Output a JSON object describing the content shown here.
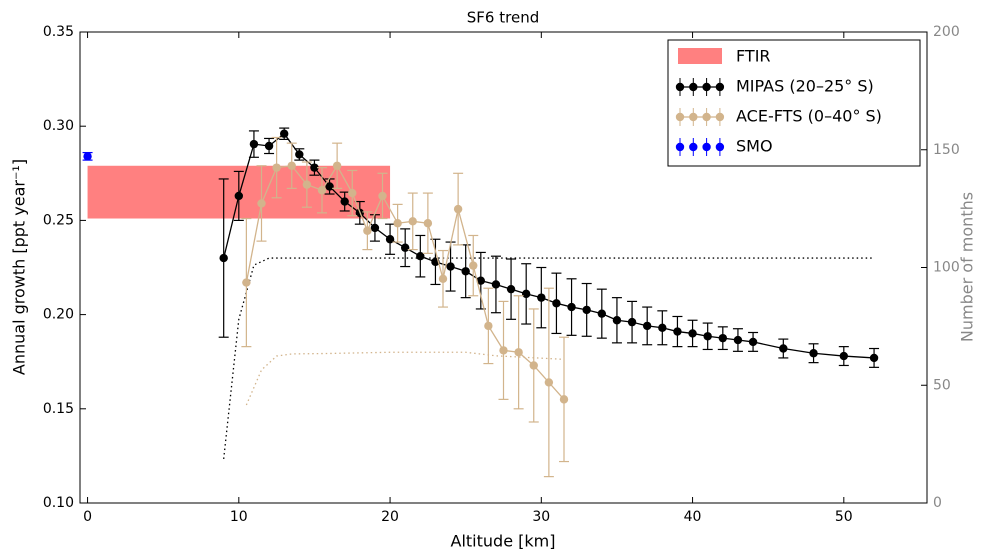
{
  "chart_data": {
    "type": "errorbar",
    "title": "SF6 trend",
    "xlabel": "Altitude [km]",
    "ylabel": "Annual growth [ppt year⁻¹]",
    "y2label": "Number of months",
    "xlim": [
      -0.5,
      55.5
    ],
    "xticks": [
      0,
      10,
      20,
      30,
      40,
      50
    ],
    "ylim": [
      0.1,
      0.35
    ],
    "yticks": [
      {
        "value": 0.1,
        "label": "0.10"
      },
      0.15,
      {
        "value": 0.2,
        "label": "0.20"
      },
      0.25,
      {
        "value": 0.3,
        "label": "0.30"
      },
      0.35
    ],
    "y2lim": [
      0,
      200
    ],
    "y2ticks": [
      0,
      50,
      100,
      150,
      200
    ],
    "legend": "upper right",
    "band": {
      "name": "FTIR",
      "color": "#ff8080",
      "x": [
        0,
        20
      ],
      "values": [
        0.251,
        0.279
      ]
    },
    "series": [
      {
        "name": "MIPAS (20–25° S)",
        "color": "#000000",
        "x": [
          9,
          10,
          11,
          12,
          13,
          14,
          15,
          16,
          17,
          18,
          19,
          20,
          21,
          22,
          23,
          24,
          25,
          26,
          27,
          28,
          29,
          30,
          31,
          32,
          33,
          34,
          35,
          36,
          37,
          38,
          39,
          40,
          41,
          42,
          43,
          44,
          46,
          48,
          50,
          52
        ],
        "values": [
          0.23,
          0.263,
          0.2905,
          0.2895,
          0.296,
          0.285,
          0.278,
          0.268,
          0.26,
          0.254,
          0.246,
          0.24,
          0.2355,
          0.231,
          0.228,
          0.2255,
          0.223,
          0.218,
          0.216,
          0.2135,
          0.211,
          0.209,
          0.206,
          0.204,
          0.2025,
          0.2005,
          0.197,
          0.196,
          0.194,
          0.193,
          0.191,
          0.19,
          0.1885,
          0.1875,
          0.1865,
          0.1855,
          0.182,
          0.1795,
          0.178,
          0.177
        ],
        "errors": [
          0.042,
          0.013,
          0.007,
          0.004,
          0.003,
          0.003,
          0.004,
          0.004,
          0.005,
          0.006,
          0.007,
          0.008,
          0.01,
          0.011,
          0.012,
          0.013,
          0.014,
          0.015,
          0.015,
          0.016,
          0.016,
          0.016,
          0.016,
          0.015,
          0.014,
          0.013,
          0.012,
          0.011,
          0.01,
          0.009,
          0.008,
          0.007,
          0.007,
          0.006,
          0.006,
          0.005,
          0.005,
          0.005,
          0.005,
          0.005
        ]
      },
      {
        "name": "ACE-FTS (0–40° S)",
        "color": "#d2b48c",
        "x": [
          10.5,
          11.5,
          12.5,
          13.5,
          14.5,
          15.5,
          16.5,
          17.5,
          18.5,
          19.5,
          20.5,
          21.5,
          22.5,
          23.5,
          24.5,
          25.5,
          26.5,
          27.5,
          28.5,
          29.5,
          30.5,
          31.5
        ],
        "values": [
          0.217,
          0.259,
          0.278,
          0.279,
          0.269,
          0.266,
          0.279,
          0.2645,
          0.2445,
          0.263,
          0.2485,
          0.2495,
          0.2485,
          0.219,
          0.256,
          0.226,
          0.194,
          0.181,
          0.18,
          0.173,
          0.164,
          0.155
        ],
        "errors": [
          0.034,
          0.02,
          0.016,
          0.012,
          0.012,
          0.012,
          0.012,
          0.012,
          0.01,
          0.012,
          0.01,
          0.015,
          0.016,
          0.015,
          0.019,
          0.016,
          0.02,
          0.026,
          0.03,
          0.03,
          0.05,
          0.033
        ]
      },
      {
        "name": "SMO",
        "color": "#0000ff",
        "x": [
          0
        ],
        "values": [
          0.284
        ],
        "errors": [
          0.002
        ]
      }
    ],
    "count_series": [
      {
        "color": "#000000",
        "axis": "y2",
        "x": [
          9,
          10,
          11,
          12,
          14,
          20,
          30,
          40,
          52
        ],
        "values": [
          18.7,
          78,
          101,
          104,
          104,
          104,
          104,
          104,
          104
        ]
      },
      {
        "color": "#d2b48c",
        "axis": "y2",
        "x": [
          10.5,
          11.5,
          12.5,
          13.5,
          16,
          20,
          25,
          27,
          30,
          31.5
        ],
        "values": [
          41.6,
          56.5,
          62.4,
          63.3,
          63.5,
          64,
          64,
          62.5,
          61.5,
          61
        ]
      }
    ]
  }
}
